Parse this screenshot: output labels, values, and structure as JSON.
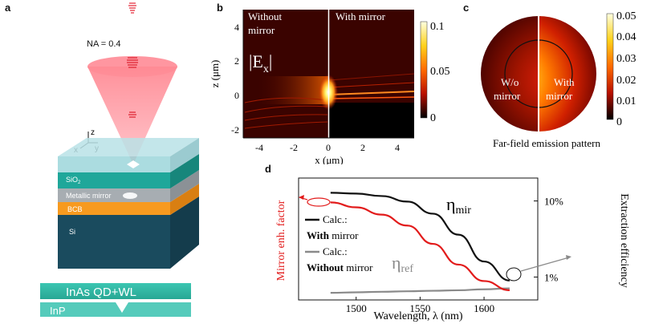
{
  "panel_a": {
    "label": "a",
    "na_label": "NA = 0.4",
    "axis_x": "x",
    "axis_y": "y",
    "axis_z": "z",
    "layers": [
      "SiO",
      "Metallic mirror",
      "BCB",
      "Si"
    ],
    "sio2_sub": "2",
    "strip_top": "InAs QD+WL",
    "strip_bottom": "InP"
  },
  "panel_b": {
    "label": "b",
    "left_title_1": "Without",
    "left_title_2": "mirror",
    "right_title": "With mirror",
    "field_label": "|E",
    "field_sub": "x",
    "field_close": "|",
    "xlabel": "x (μm)",
    "ylabel": "z (μm)",
    "xticks": [
      "-4",
      "-2",
      "0",
      "2",
      "4"
    ],
    "yticks": [
      "4",
      "2",
      "0",
      "-2"
    ],
    "colorbar_ticks": [
      "0.1",
      "0.05",
      "0"
    ]
  },
  "panel_c": {
    "label": "c",
    "left_text_1": "W/o",
    "left_text_2": "mirror",
    "right_text_1": "With",
    "right_text_2": "mirror",
    "caption": "Far-field emission pattern",
    "colorbar_ticks": [
      "0.05",
      "0.04",
      "0.03",
      "0.02",
      "0.01",
      "0"
    ]
  },
  "panel_d": {
    "label": "d",
    "chart_data": {
      "type": "line",
      "title": "",
      "xlabel": "Wavelength, λ (nm)",
      "ylabel_left": "Mirror enh. factor",
      "ylabel_right": "Extraction efficiency",
      "xlim": [
        1455,
        1642
      ],
      "xticks": [
        "1500",
        "1550",
        "1600"
      ],
      "right_yticks": [
        "10%",
        "1%"
      ],
      "series": [
        {
          "name": "η_mir (Calc.: With mirror)",
          "axis": "right",
          "color": "#111111",
          "x": [
            1480,
            1500,
            1520,
            1540,
            1560,
            1580,
            1600,
            1620
          ],
          "y": [
            12.8,
            12.5,
            11.6,
            9.8,
            6.8,
            3.6,
            1.6,
            0.9
          ]
        },
        {
          "name": "η_ref (Calc.: Without mirror)",
          "axis": "right",
          "color": "#8a8a8a",
          "x": [
            1480,
            1500,
            1520,
            1540,
            1560,
            1580,
            1600,
            1620
          ],
          "y": [
            0.62,
            0.63,
            0.64,
            0.65,
            0.66,
            0.67,
            0.69,
            0.71
          ]
        },
        {
          "name": "Mirror enh. factor",
          "axis": "left",
          "color": "#e21b1b",
          "x": [
            1480,
            1500,
            1520,
            1540,
            1560,
            1580,
            1600,
            1620
          ],
          "y": [
            16,
            15.2,
            14,
            12.2,
            9.2,
            5.8,
            3.1,
            1.6
          ]
        }
      ]
    },
    "eta_mir": "η",
    "eta_mir_sub": "mir",
    "eta_ref": "η",
    "eta_ref_sub": "ref",
    "legend": {
      "calc1": "Calc.:",
      "with_bold": "With",
      "with_rest": " mirror",
      "calc2": "Calc.:",
      "without_bold": "Without",
      "without_rest": " mirror"
    },
    "colors": {
      "red": "#e21b1b",
      "black": "#111111",
      "gray": "#8a8a8a"
    }
  }
}
